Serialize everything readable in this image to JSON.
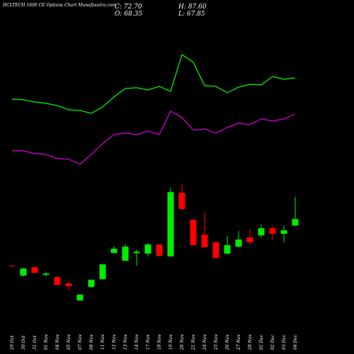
{
  "chart_data": {
    "type": "candlestick",
    "title": "HCLTECH 1600 CE Options Chart Munafasutra.com",
    "ohlc_labels": [
      "C: 72.70",
      "O: 68.35",
      "H: 87.60",
      "L: 67.85"
    ],
    "categories": [
      "29 Oct",
      "30 Oct",
      "31 Oct",
      "01 Nov",
      "04 Nov",
      "05 Nov",
      "07 Nov",
      "08 Nov",
      "11 Nov",
      "12 Nov",
      "13 Nov",
      "14 Nov",
      "17 Nov",
      "18 Nov",
      "19 Nov",
      "20 Nov",
      "21 Nov",
      "24 Nov",
      "25 Nov",
      "26 Nov",
      "27 Nov",
      "28 Nov",
      "01 Dec",
      "02 Dec",
      "03 Dec",
      "04 Dec"
    ],
    "open": [
      41.3,
      34.6,
      40.3,
      35.1,
      33.7,
      29.4,
      17.9,
      27.0,
      32.2,
      49.8,
      44.6,
      49.8,
      49.4,
      55.6,
      47.5,
      90.3,
      72.2,
      62.2,
      57.0,
      49.4,
      54.1,
      60.3,
      61.7,
      66.5,
      62.7,
      68.35
    ],
    "high": [
      41.7,
      39.8,
      40.8,
      37.0,
      34.1,
      30.8,
      21.8,
      31.8,
      42.2,
      54.6,
      56.0,
      52.2,
      56.5,
      55.6,
      93.6,
      96.5,
      72.2,
      77.0,
      57.9,
      61.3,
      64.6,
      65.6,
      68.9,
      68.4,
      68.4,
      87.6
    ],
    "low": [
      40.3,
      34.1,
      36.0,
      34.1,
      27.5,
      24.6,
      17.9,
      27.0,
      32.2,
      49.8,
      44.6,
      41.3,
      47.5,
      47.5,
      47.5,
      78.9,
      54.6,
      53.7,
      46.0,
      49.4,
      53.2,
      55.6,
      60.3,
      58.4,
      57.0,
      67.85
    ],
    "close": [
      40.8,
      39.4,
      36.5,
      36.0,
      28.4,
      27.5,
      21.8,
      31.8,
      42.2,
      52.7,
      54.1,
      50.8,
      55.6,
      47.9,
      90.8,
      79.4,
      55.1,
      53.7,
      46.5,
      55.1,
      58.9,
      57.0,
      66.5,
      62.7,
      65.1,
      72.7
    ],
    "up_color": "#00ee00",
    "down_color": "#ff0000",
    "lines": [
      {
        "color": "#00ee00",
        "values": [
          153.3,
          152.9,
          151.4,
          150.5,
          149.0,
          146.2,
          145.7,
          143.8,
          148.1,
          154.8,
          160.5,
          161.0,
          159.5,
          161.9,
          158.6,
          183.3,
          178.1,
          162.4,
          161.9,
          157.6,
          161.4,
          163.3,
          162.9,
          168.6,
          166.7,
          167.6
        ]
      },
      {
        "color": "#cc00cc",
        "values": [
          118.6,
          118.6,
          116.7,
          116.2,
          113.3,
          112.9,
          109.5,
          116.2,
          123.3,
          129.5,
          130.5,
          129.5,
          131.9,
          129.5,
          145.2,
          141.0,
          132.4,
          133.3,
          130.5,
          134.3,
          137.1,
          136.2,
          140.0,
          138.6,
          140.0,
          143.3
        ]
      }
    ],
    "ylim": [
      0,
      220
    ]
  }
}
